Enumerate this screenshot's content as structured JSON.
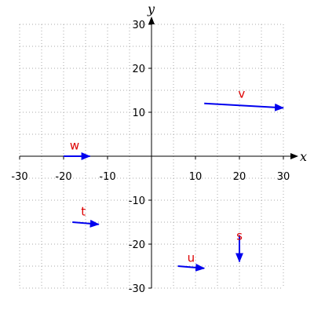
{
  "chart_data": {
    "type": "vector-field",
    "title": "",
    "xlabel": "x",
    "ylabel": "y",
    "xlim": [
      -30,
      30
    ],
    "ylim": [
      -30,
      30
    ],
    "x_ticks": [
      -30,
      -20,
      -10,
      10,
      20,
      30
    ],
    "y_ticks": [
      -30,
      -20,
      -10,
      10,
      20,
      30
    ],
    "grid": true,
    "vectors": [
      {
        "name": "v",
        "tail": [
          12,
          12
        ],
        "head": [
          30,
          11
        ]
      },
      {
        "name": "w",
        "tail": [
          -20,
          0
        ],
        "head": [
          -14,
          0
        ]
      },
      {
        "name": "t",
        "tail": [
          -18,
          -15
        ],
        "head": [
          -12,
          -15.5
        ]
      },
      {
        "name": "s",
        "tail": [
          20,
          -18
        ],
        "head": [
          20,
          -24
        ]
      },
      {
        "name": "u",
        "tail": [
          6,
          -25
        ],
        "head": [
          12,
          -25.5
        ]
      }
    ],
    "label_offsets": {
      "v": [
        20.5,
        13.3
      ],
      "w": [
        -17.5,
        1.5
      ],
      "t": [
        -15.5,
        -13.5
      ],
      "s": [
        20,
        -19
      ],
      "u": [
        9,
        -24
      ]
    },
    "colors": {
      "vector": "#0000ee",
      "label": "#dd0000",
      "grid": "#aaaaaa",
      "axis": "#000000"
    }
  }
}
